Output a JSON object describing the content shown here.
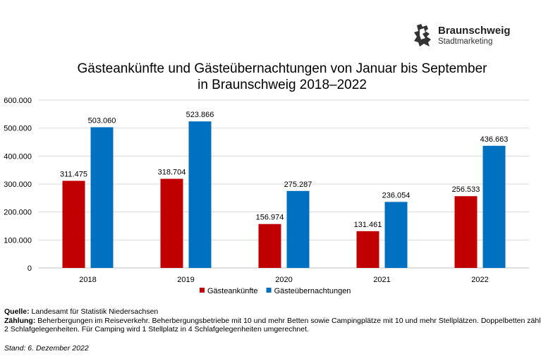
{
  "logo": {
    "name": "Braunschweig",
    "subtitle": "Stadtmarketing"
  },
  "chart_data": {
    "type": "bar",
    "title_lines": [
      "Gästeankünfte und Gästeübernachtungen von Januar bis September",
      "in Braunschweig 2018–2022"
    ],
    "categories": [
      "2018",
      "2019",
      "2020",
      "2021",
      "2022"
    ],
    "series": [
      {
        "name": "Gästeankünfte",
        "color": "#c00000",
        "values": [
          311475,
          318704,
          156974,
          131461,
          256533
        ],
        "labels": [
          "311.475",
          "318.704",
          "156.974",
          "131.461",
          "256.533"
        ]
      },
      {
        "name": "Gästeübernachtungen",
        "color": "#0070c0",
        "values": [
          503060,
          523866,
          275287,
          236054,
          436663
        ],
        "labels": [
          "503.060",
          "523.866",
          "275.287",
          "236.054",
          "436.663"
        ]
      }
    ],
    "ylim": [
      0,
      600000
    ],
    "yticks": [
      0,
      100000,
      200000,
      300000,
      400000,
      500000,
      600000
    ],
    "ytick_labels": [
      "0",
      "100.000",
      "200.000",
      "300.000",
      "400.000",
      "500.000",
      "600.000"
    ],
    "grid": true,
    "legend": "bottom-center",
    "xlabel": "",
    "ylabel": ""
  },
  "footer": {
    "source_label": "Quelle:",
    "source_text": " Landesamt für Statistik Niedersachsen",
    "count_label": "Zählung:",
    "count_text_1": " Beherbergungen im Reiseverkehr. Beherbergungsbetriebe mit 10 und mehr Betten sowie Campingplätze mit 10 und mehr Stellplätzen. Doppelbetten zählen als",
    "count_text_2": "2 Schlafgelegenheiten. Für Camping wird 1 Stellplatz in 4 Schlafgelegenheiten umgerechnet.",
    "stand": "Stand: 6. Dezember 2022"
  }
}
